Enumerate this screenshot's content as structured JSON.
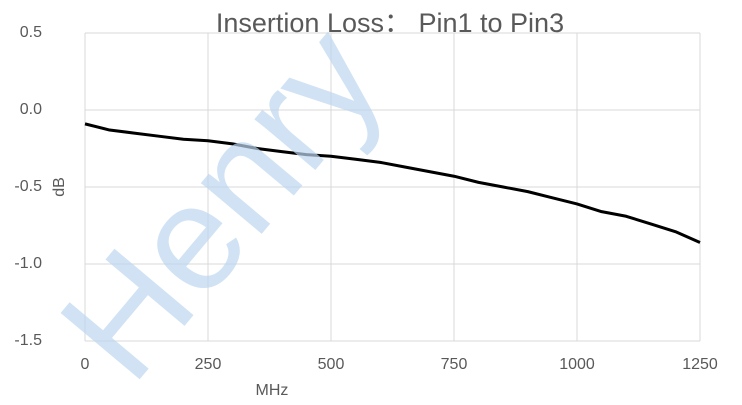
{
  "chart_data": {
    "type": "line",
    "title": "Insertion Loss： Pin1 to Pin3",
    "x_label": "MHz",
    "y_label": "dB",
    "watermark": "Henry",
    "x": [
      0,
      50,
      100,
      150,
      200,
      250,
      300,
      350,
      400,
      450,
      500,
      550,
      600,
      650,
      700,
      750,
      800,
      850,
      900,
      950,
      1000,
      1050,
      1100,
      1150,
      1200,
      1250
    ],
    "series": [
      {
        "name": "Insertion Loss",
        "color": "#000000",
        "values": [
          -0.09,
          -0.13,
          -0.15,
          -0.17,
          -0.19,
          -0.2,
          -0.22,
          -0.25,
          -0.27,
          -0.29,
          -0.3,
          -0.32,
          -0.34,
          -0.37,
          -0.4,
          -0.43,
          -0.47,
          -0.5,
          -0.53,
          -0.57,
          -0.61,
          -0.66,
          -0.69,
          -0.74,
          -0.79,
          -0.86
        ]
      }
    ],
    "xlim": [
      0,
      1250
    ],
    "xticks": [
      0,
      250,
      500,
      750,
      1000,
      1250
    ],
    "ylim": [
      -1.5,
      0.5
    ],
    "yticks": [
      {
        "value": -1.5,
        "label": "-1.5"
      },
      {
        "value": -1,
        "label": "-1.0"
      },
      {
        "value": -0.5,
        "label": "-0.5"
      },
      {
        "value": 0,
        "label": "0.0"
      },
      {
        "value": 0.5,
        "label": "0.5"
      }
    ],
    "grid": true
  }
}
